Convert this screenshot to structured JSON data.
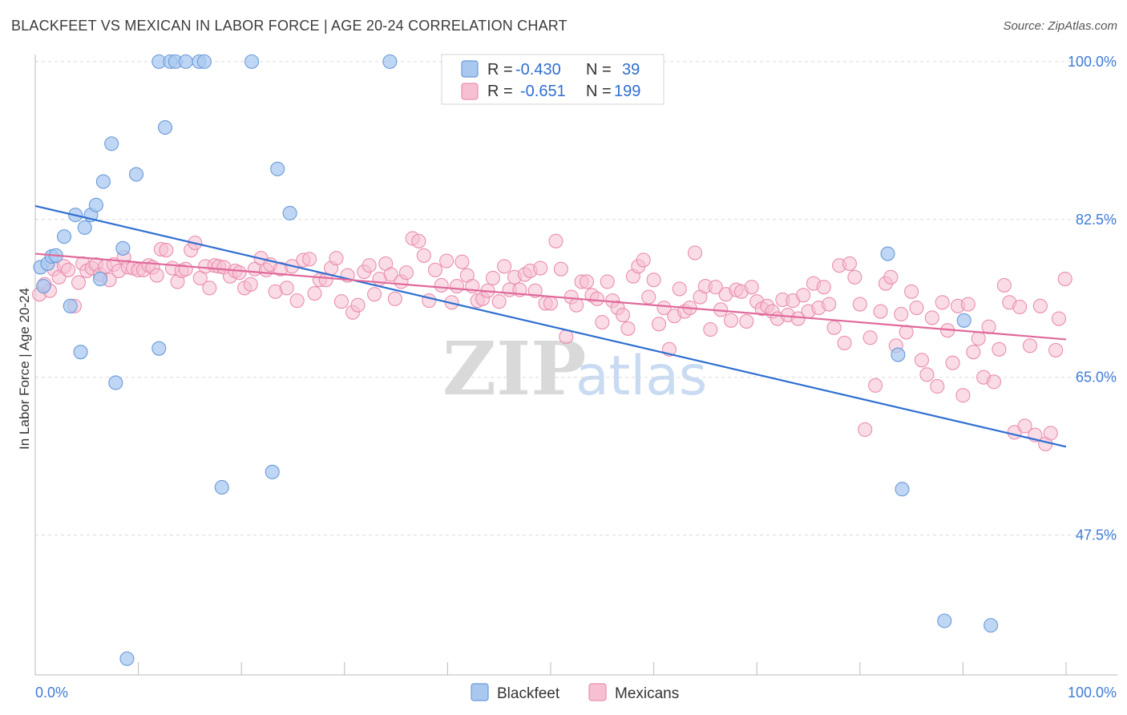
{
  "title": "BLACKFEET VS MEXICAN IN LABOR FORCE | AGE 20-24 CORRELATION CHART",
  "source": "Source: ZipAtlas.com",
  "watermark": {
    "zip": "ZIP",
    "atlas": "atlas"
  },
  "colors": {
    "blackfeet_fill": "#a9c8f0",
    "blackfeet_stroke": "#6b9bd8",
    "blackfeet_line": "#2f6fd0",
    "mexicans_fill": "#f6bfd2",
    "mexicans_stroke": "#ea8fb0",
    "mexicans_line": "#e0699a",
    "value_blue": "#2f6fd0",
    "grid": "#dcdcdc"
  },
  "legend_box": {
    "rows": [
      {
        "r_label": "R = ",
        "r_value": "-0.430",
        "n_label": "N = ",
        "n_value": "39"
      },
      {
        "r_label": "R = ",
        "r_value": "-0.651",
        "n_label": "N = ",
        "n_value": "199"
      }
    ]
  },
  "chart_data": {
    "type": "scatter",
    "title": "BLACKFEET VS MEXICAN IN LABOR FORCE | AGE 20-24 CORRELATION CHART",
    "xlabel": "",
    "ylabel": "In Labor Force | Age 20-24",
    "xlim": [
      0,
      100
    ],
    "ylim": [
      32.0,
      101.5
    ],
    "x_tick_labels": [
      "0.0%",
      "100.0%"
    ],
    "y_ticks": [
      47.5,
      65.0,
      82.5,
      100.0
    ],
    "y_tick_labels": [
      "47.5%",
      "65.0%",
      "82.5%",
      "100.0%"
    ],
    "grid": true,
    "legend_position": "top-center",
    "series": [
      {
        "name": "Blackfeet",
        "r": -0.43,
        "n": 39,
        "trend": {
          "x": [
            0,
            100
          ],
          "y": [
            84.0,
            57.3
          ]
        },
        "points": [
          [
            0.5,
            77.2
          ],
          [
            0.8,
            75.1
          ],
          [
            1.2,
            77.6
          ],
          [
            1.6,
            78.4
          ],
          [
            2.0,
            78.5
          ],
          [
            2.8,
            80.6
          ],
          [
            3.4,
            72.9
          ],
          [
            3.9,
            83.0
          ],
          [
            4.4,
            67.8
          ],
          [
            4.8,
            81.6
          ],
          [
            5.4,
            83.0
          ],
          [
            5.9,
            84.1
          ],
          [
            6.3,
            75.9
          ],
          [
            6.6,
            86.7
          ],
          [
            7.4,
            90.9
          ],
          [
            7.8,
            64.4
          ],
          [
            8.5,
            79.3
          ],
          [
            8.9,
            33.8
          ],
          [
            9.8,
            87.5
          ],
          [
            12.0,
            68.2
          ],
          [
            12.6,
            92.7
          ],
          [
            12.0,
            100.0
          ],
          [
            13.1,
            100.0
          ],
          [
            13.6,
            100.0
          ],
          [
            14.6,
            100.0
          ],
          [
            15.9,
            100.0
          ],
          [
            16.4,
            100.0
          ],
          [
            18.1,
            52.8
          ],
          [
            21.0,
            100.0
          ],
          [
            23.0,
            54.5
          ],
          [
            23.5,
            88.1
          ],
          [
            24.7,
            83.2
          ],
          [
            34.4,
            100.0
          ],
          [
            82.7,
            78.7
          ],
          [
            83.7,
            67.5
          ],
          [
            84.1,
            52.6
          ],
          [
            88.2,
            38.0
          ],
          [
            90.1,
            71.3
          ],
          [
            92.7,
            37.5
          ]
        ]
      },
      {
        "name": "Mexicans",
        "r": -0.651,
        "n": 199,
        "trend": {
          "x": [
            0,
            100
          ],
          "y": [
            78.7,
            69.2
          ]
        },
        "points": [
          [
            0.4,
            74.2
          ],
          [
            0.9,
            75.3
          ],
          [
            1.4,
            74.6
          ],
          [
            1.8,
            77.0
          ],
          [
            2.3,
            76.1
          ],
          [
            2.8,
            77.3
          ],
          [
            3.2,
            76.9
          ],
          [
            3.8,
            72.9
          ],
          [
            4.2,
            75.5
          ],
          [
            4.6,
            77.6
          ],
          [
            5.0,
            76.8
          ],
          [
            5.5,
            77.1
          ],
          [
            5.9,
            77.5
          ],
          [
            6.3,
            76.4
          ],
          [
            6.8,
            77.3
          ],
          [
            7.2,
            75.8
          ],
          [
            7.6,
            77.5
          ],
          [
            8.1,
            76.8
          ],
          [
            8.6,
            78.3
          ],
          [
            9.0,
            77.2
          ],
          [
            9.5,
            77.1
          ],
          [
            10.0,
            76.9
          ],
          [
            10.5,
            76.9
          ],
          [
            11.0,
            77.4
          ],
          [
            11.4,
            77.2
          ],
          [
            11.8,
            76.3
          ],
          [
            12.2,
            79.2
          ],
          [
            12.7,
            79.1
          ],
          [
            13.3,
            77.1
          ],
          [
            13.8,
            75.6
          ],
          [
            14.2,
            76.8
          ],
          [
            14.6,
            77.0
          ],
          [
            15.1,
            79.1
          ],
          [
            15.5,
            79.9
          ],
          [
            16.0,
            76.0
          ],
          [
            16.5,
            77.3
          ],
          [
            16.9,
            74.9
          ],
          [
            17.4,
            77.4
          ],
          [
            17.8,
            77.3
          ],
          [
            18.3,
            77.2
          ],
          [
            18.9,
            76.2
          ],
          [
            19.4,
            76.8
          ],
          [
            19.8,
            76.6
          ],
          [
            20.3,
            74.9
          ],
          [
            20.9,
            75.3
          ],
          [
            21.3,
            77.0
          ],
          [
            21.9,
            78.2
          ],
          [
            22.4,
            76.9
          ],
          [
            22.8,
            77.5
          ],
          [
            23.3,
            74.5
          ],
          [
            23.8,
            77.0
          ],
          [
            24.4,
            74.9
          ],
          [
            24.9,
            77.3
          ],
          [
            25.4,
            73.5
          ],
          [
            26.0,
            78.0
          ],
          [
            26.6,
            78.1
          ],
          [
            27.1,
            74.3
          ],
          [
            27.6,
            75.8
          ],
          [
            28.2,
            75.8
          ],
          [
            28.7,
            77.1
          ],
          [
            29.2,
            78.2
          ],
          [
            29.7,
            73.4
          ],
          [
            30.3,
            76.3
          ],
          [
            30.8,
            72.2
          ],
          [
            31.3,
            73.0
          ],
          [
            31.9,
            76.7
          ],
          [
            32.4,
            77.4
          ],
          [
            32.9,
            74.2
          ],
          [
            33.4,
            75.9
          ],
          [
            34.0,
            77.6
          ],
          [
            34.5,
            76.4
          ],
          [
            34.9,
            73.7
          ],
          [
            35.5,
            75.6
          ],
          [
            36.0,
            76.6
          ],
          [
            36.6,
            80.4
          ],
          [
            37.2,
            80.1
          ],
          [
            37.7,
            78.5
          ],
          [
            38.2,
            73.5
          ],
          [
            38.8,
            76.9
          ],
          [
            39.4,
            75.2
          ],
          [
            39.9,
            77.9
          ],
          [
            40.4,
            73.3
          ],
          [
            40.9,
            75.1
          ],
          [
            41.4,
            77.8
          ],
          [
            41.9,
            76.3
          ],
          [
            42.4,
            75.1
          ],
          [
            42.9,
            73.5
          ],
          [
            43.4,
            73.7
          ],
          [
            43.9,
            74.6
          ],
          [
            44.4,
            76.0
          ],
          [
            45.0,
            73.4
          ],
          [
            45.5,
            77.3
          ],
          [
            46.0,
            74.7
          ],
          [
            46.5,
            76.1
          ],
          [
            47.0,
            74.7
          ],
          [
            47.5,
            76.4
          ],
          [
            48.0,
            76.8
          ],
          [
            48.5,
            74.6
          ],
          [
            49.0,
            77.1
          ],
          [
            49.5,
            73.2
          ],
          [
            50.0,
            73.2
          ],
          [
            50.5,
            80.1
          ],
          [
            51.0,
            77.0
          ],
          [
            51.5,
            69.5
          ],
          [
            52.0,
            73.9
          ],
          [
            52.5,
            73.0
          ],
          [
            53.0,
            75.6
          ],
          [
            53.5,
            75.6
          ],
          [
            54.0,
            74.1
          ],
          [
            54.5,
            73.7
          ],
          [
            55.0,
            71.1
          ],
          [
            55.5,
            75.6
          ],
          [
            56.0,
            73.5
          ],
          [
            56.5,
            72.7
          ],
          [
            57.0,
            71.9
          ],
          [
            57.5,
            70.4
          ],
          [
            58.0,
            76.2
          ],
          [
            58.5,
            77.3
          ],
          [
            59.0,
            78.0
          ],
          [
            59.5,
            73.9
          ],
          [
            60.0,
            75.8
          ],
          [
            60.5,
            70.9
          ],
          [
            61.0,
            72.7
          ],
          [
            61.5,
            68.1
          ],
          [
            62.0,
            71.8
          ],
          [
            62.5,
            74.8
          ],
          [
            63.0,
            72.3
          ],
          [
            63.5,
            72.7
          ],
          [
            64.0,
            78.8
          ],
          [
            64.5,
            73.9
          ],
          [
            65.0,
            75.1
          ],
          [
            65.5,
            70.3
          ],
          [
            66.0,
            75.0
          ],
          [
            66.5,
            72.5
          ],
          [
            67.0,
            74.2
          ],
          [
            67.5,
            71.3
          ],
          [
            68.0,
            74.7
          ],
          [
            68.5,
            74.5
          ],
          [
            69.0,
            71.2
          ],
          [
            69.5,
            75.0
          ],
          [
            70.0,
            73.4
          ],
          [
            70.5,
            72.6
          ],
          [
            71.0,
            72.9
          ],
          [
            71.5,
            72.3
          ],
          [
            72.0,
            71.5
          ],
          [
            72.5,
            73.6
          ],
          [
            73.0,
            71.9
          ],
          [
            73.5,
            73.5
          ],
          [
            74.0,
            71.5
          ],
          [
            74.5,
            74.1
          ],
          [
            75.0,
            72.3
          ],
          [
            75.5,
            75.4
          ],
          [
            76.0,
            72.7
          ],
          [
            76.5,
            75.0
          ],
          [
            77.0,
            73.1
          ],
          [
            77.5,
            70.5
          ],
          [
            78.0,
            77.4
          ],
          [
            78.5,
            68.8
          ],
          [
            79.0,
            77.6
          ],
          [
            79.5,
            76.1
          ],
          [
            80.0,
            73.1
          ],
          [
            80.5,
            59.2
          ],
          [
            81.0,
            69.4
          ],
          [
            81.5,
            64.1
          ],
          [
            82.0,
            72.3
          ],
          [
            82.5,
            75.4
          ],
          [
            83.0,
            76.1
          ],
          [
            83.5,
            68.5
          ],
          [
            84.0,
            72.0
          ],
          [
            84.5,
            70.0
          ],
          [
            85.0,
            74.5
          ],
          [
            85.5,
            72.7
          ],
          [
            86.0,
            66.9
          ],
          [
            86.5,
            65.3
          ],
          [
            87.0,
            71.6
          ],
          [
            87.5,
            64.0
          ],
          [
            88.0,
            73.3
          ],
          [
            88.5,
            70.2
          ],
          [
            89.0,
            66.6
          ],
          [
            89.5,
            72.9
          ],
          [
            90.0,
            63.0
          ],
          [
            90.5,
            73.1
          ],
          [
            91.0,
            67.8
          ],
          [
            91.5,
            69.3
          ],
          [
            92.0,
            65.0
          ],
          [
            92.5,
            70.6
          ],
          [
            93.0,
            64.5
          ],
          [
            93.5,
            68.1
          ],
          [
            94.0,
            75.2
          ],
          [
            94.5,
            73.3
          ],
          [
            95.0,
            58.9
          ],
          [
            95.5,
            72.8
          ],
          [
            96.0,
            59.6
          ],
          [
            96.5,
            68.5
          ],
          [
            97.0,
            58.6
          ],
          [
            97.5,
            72.9
          ],
          [
            98.0,
            57.6
          ],
          [
            98.5,
            58.8
          ],
          [
            99.0,
            68.0
          ],
          [
            99.9,
            75.9
          ],
          [
            99.3,
            71.5
          ]
        ]
      }
    ]
  },
  "bottom_legend": [
    {
      "label": "Blackfeet"
    },
    {
      "label": "Mexicans"
    }
  ]
}
